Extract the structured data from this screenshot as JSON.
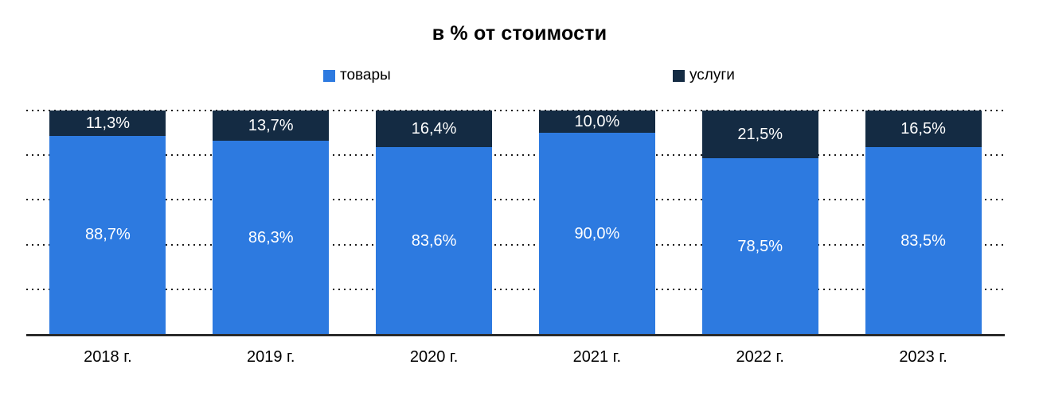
{
  "chart_data": {
    "type": "bar",
    "stacked": true,
    "percent_stacked": true,
    "title": "в % от стоимости",
    "categories": [
      "2018 г.",
      "2019 г.",
      "2020 г.",
      "2021 г.",
      "2022 г.",
      "2023 г."
    ],
    "series": [
      {
        "name": "товары",
        "color": "#2d7ae0",
        "values": [
          88.7,
          86.3,
          83.6,
          90.0,
          78.5,
          83.5
        ],
        "labels": [
          "88,7%",
          "86,3%",
          "83,6%",
          "90,0%",
          "78,5%",
          "83,5%"
        ]
      },
      {
        "name": "услуги",
        "color": "#142b43",
        "values": [
          11.3,
          13.7,
          16.4,
          10.0,
          21.5,
          16.5
        ],
        "labels": [
          "11,3%",
          "13,7%",
          "16,4%",
          "10,0%",
          "21,5%",
          "16,5%"
        ]
      }
    ],
    "ylim": [
      0,
      100
    ],
    "gridline_interval": 20,
    "gridline_style": "dotted",
    "grid_on": true,
    "y_axis_labels_visible": false,
    "legend_position": "top",
    "value_label_color": "#ffffff",
    "axis_line_color": "#2b2b2b",
    "title_color": "#000000"
  }
}
